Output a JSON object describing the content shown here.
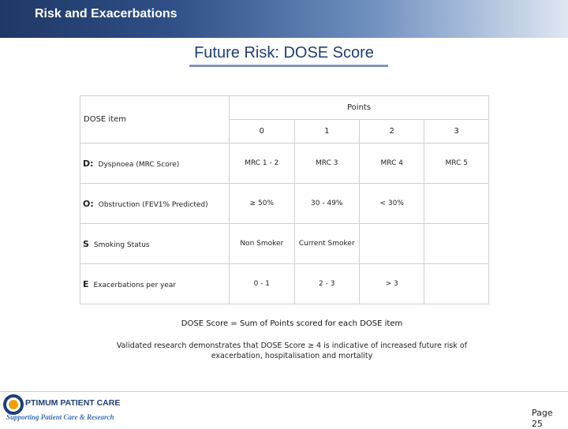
{
  "header": {
    "title": "Risk and Exacerbations"
  },
  "slide": {
    "title": "Future Risk: DOSE Score"
  },
  "table": {
    "points_header": "Points",
    "item_header": "DOSE item",
    "point_columns": [
      "0",
      "1",
      "2",
      "3"
    ],
    "rows": [
      {
        "letter": "D:",
        "label": "Dyspnoea (MRC Score)",
        "cells": [
          "MRC 1 - 2",
          "MRC 3",
          "MRC 4",
          "MRC 5"
        ]
      },
      {
        "letter": "O:",
        "label": "Obstruction (FEV1% Predicted)",
        "cells": [
          "≥ 50%",
          "30 - 49%",
          "< 30%",
          ""
        ]
      },
      {
        "letter": "S",
        "label": "Smoking Status",
        "cells": [
          "Non Smoker",
          "Current Smoker",
          "",
          ""
        ]
      },
      {
        "letter": "E",
        "label": "Exacerbations per year",
        "cells": [
          "0 - 1",
          "2 - 3",
          "> 3",
          ""
        ]
      }
    ]
  },
  "footer": {
    "sum_text": "DOSE Score = Sum of Points scored for each DOSE item",
    "validated_text": "Validated research demonstrates that DOSE Score ≥ 4 is indicative of increased future risk of exacerbation, hospitalisation and mortality"
  },
  "logo": {
    "name": "PTIMUM PATIENT CARE",
    "tagline": "Supporting Patient Care & Research",
    "icon": "optimum-o-logo-icon"
  },
  "page": {
    "label": "Page",
    "number": "25"
  }
}
